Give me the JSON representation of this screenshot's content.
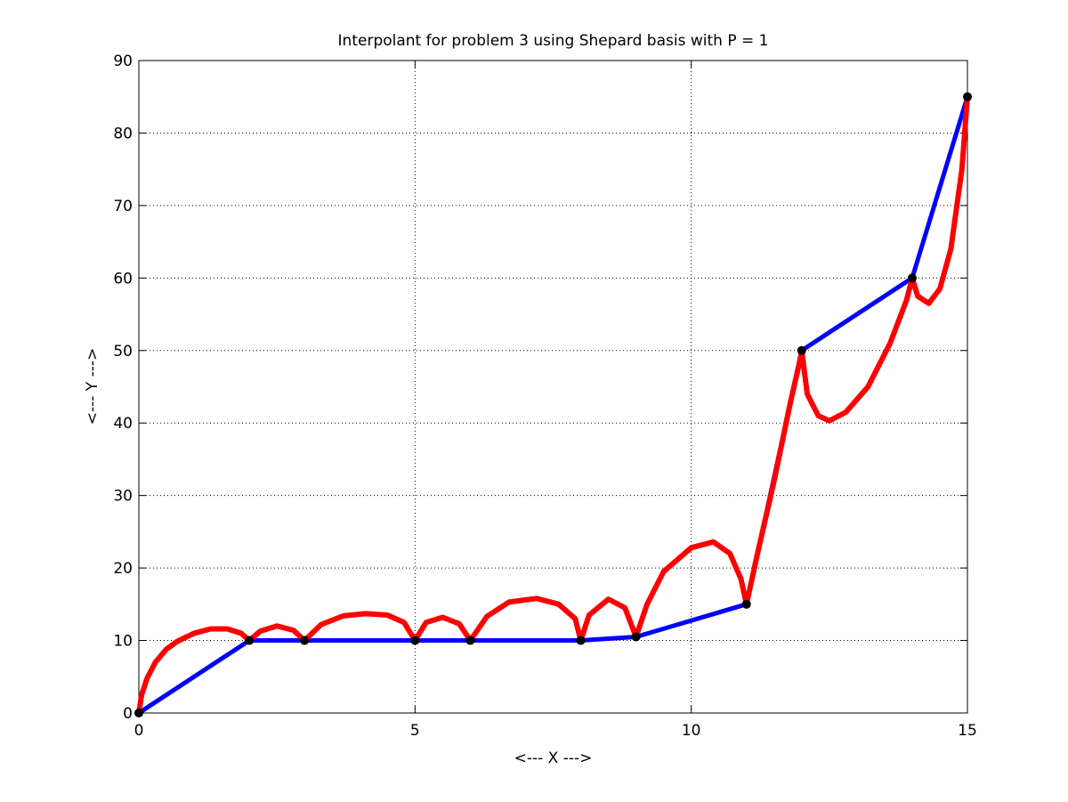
{
  "chart_data": {
    "type": "line",
    "title": "Interpolant for problem 3 using Shepard basis with P = 1",
    "xlabel": "<--- X --->",
    "ylabel": "<--- Y --->",
    "xlim": [
      0,
      15
    ],
    "ylim": [
      0,
      90
    ],
    "xticks": [
      0,
      5,
      10,
      15
    ],
    "yticks": [
      0,
      10,
      20,
      30,
      40,
      50,
      60,
      70,
      80,
      90
    ],
    "grid": true,
    "colors": {
      "linear": "#0000ff",
      "shepard": "#ff0000",
      "points": "#000000"
    },
    "points": {
      "x": [
        0,
        2,
        3,
        5,
        6,
        8,
        9,
        11,
        12,
        14,
        15
      ],
      "y": [
        0,
        10,
        10,
        10,
        10,
        10,
        10.5,
        15,
        50,
        60,
        85
      ]
    },
    "series": [
      {
        "style": "linear",
        "x": [
          0,
          2,
          3,
          5,
          6,
          8,
          9,
          11,
          12,
          14,
          15
        ],
        "y": [
          0,
          10,
          10,
          10,
          10,
          10,
          10.5,
          15,
          50,
          60,
          85
        ]
      },
      {
        "style": "shepard",
        "x": [
          0,
          0.05,
          0.15,
          0.3,
          0.5,
          0.7,
          1.0,
          1.3,
          1.6,
          1.85,
          2.0,
          2.2,
          2.5,
          2.8,
          3.0,
          3.3,
          3.7,
          4.1,
          4.5,
          4.8,
          5.0,
          5.2,
          5.5,
          5.8,
          6.0,
          6.3,
          6.7,
          7.2,
          7.6,
          7.9,
          8.0,
          8.15,
          8.5,
          8.8,
          9.0,
          9.2,
          9.5,
          10.0,
          10.4,
          10.7,
          10.9,
          11.0,
          11.2,
          11.5,
          11.8,
          11.95,
          12.0,
          12.1,
          12.3,
          12.5,
          12.8,
          13.2,
          13.6,
          13.9,
          14.0,
          14.1,
          14.3,
          14.5,
          14.7,
          14.9,
          15.0
        ],
        "y": [
          0,
          2.5,
          4.8,
          7.0,
          8.8,
          9.9,
          11.0,
          11.6,
          11.6,
          11.0,
          10.0,
          11.3,
          12.0,
          11.4,
          10.0,
          12.2,
          13.4,
          13.7,
          13.5,
          12.5,
          10.0,
          12.5,
          13.2,
          12.3,
          10.0,
          13.3,
          15.3,
          15.8,
          15.0,
          13.0,
          10.0,
          13.5,
          15.7,
          14.5,
          10.5,
          15.0,
          19.5,
          22.8,
          23.6,
          22.0,
          18.5,
          15.0,
          22.0,
          32.0,
          43.0,
          48.0,
          50.0,
          44.0,
          41.0,
          40.3,
          41.5,
          45.0,
          51.0,
          57.0,
          60.0,
          57.5,
          56.5,
          58.5,
          64.0,
          75.0,
          85.0
        ]
      }
    ]
  }
}
